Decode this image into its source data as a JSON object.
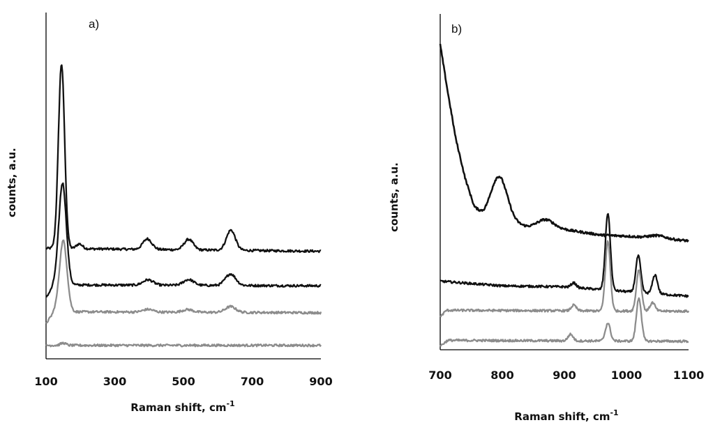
{
  "chart_data": [
    {
      "type": "line",
      "panel_label": "a)",
      "xlabel": "Raman shift, cm",
      "xlabel_sup": "-1",
      "ylabel": "counts, a.u.",
      "xlim": [
        100,
        900
      ],
      "xticks": [
        100,
        300,
        500,
        700,
        900
      ],
      "grid": false,
      "legend": "none",
      "series": [
        {
          "color": "#111111",
          "offset": 5.6,
          "sigma": 9,
          "peaks": [
            [
              145,
              9.6
            ],
            [
              197,
              0.25
            ],
            [
              395,
              0.55
            ],
            [
              515,
              0.55
            ],
            [
              638,
              1.05
            ]
          ],
          "baseline": [
            [
              100,
              0.15
            ],
            [
              900,
              0.0
            ]
          ]
        },
        {
          "color": "#111111",
          "offset": 3.8,
          "sigma": 11,
          "peaks": [
            [
              148,
              5.3
            ],
            [
              397,
              0.28
            ],
            [
              515,
              0.3
            ],
            [
              637,
              0.6
            ]
          ],
          "baseline": [
            [
              100,
              -0.6
            ],
            [
              125,
              0.05
            ],
            [
              900,
              0.0
            ]
          ]
        },
        {
          "color": "#8c8c8c",
          "offset": 2.4,
          "sigma": 11,
          "peaks": [
            [
              150,
              3.7
            ],
            [
              397,
              0.14
            ],
            [
              512,
              0.14
            ],
            [
              637,
              0.3
            ]
          ],
          "baseline": [
            [
              100,
              -0.55
            ],
            [
              125,
              0.05
            ],
            [
              900,
              0.0
            ]
          ]
        },
        {
          "color": "#8c8c8c",
          "offset": 0.7,
          "sigma": 8,
          "peaks": [
            [
              150,
              0.12
            ]
          ],
          "baseline": [
            [
              100,
              0.0
            ],
            [
              900,
              0.0
            ]
          ]
        }
      ]
    },
    {
      "type": "line",
      "panel_label": "b)",
      "xlabel": "Raman shift, cm",
      "xlabel_sup": "-1",
      "ylabel": "counts, a.u.",
      "xlim": [
        700,
        1100
      ],
      "xticks": [
        700,
        800,
        900,
        1000,
        1100
      ],
      "grid": false,
      "legend": "none",
      "series": [
        {
          "color": "#111111",
          "offset": 6.05,
          "sigma": 13,
          "peaks": [
            [
              795,
              2.3
            ],
            [
              870,
              0.45
            ],
            [
              1050,
              0.15
            ]
          ],
          "baseline": [
            [
              700,
              10.2
            ],
            [
              712,
              7.7
            ],
            [
              725,
              5.2
            ],
            [
              740,
              3.1
            ],
            [
              755,
              1.55
            ],
            [
              770,
              1.05
            ],
            [
              785,
              0.95
            ],
            [
              840,
              0.5
            ],
            [
              900,
              0.35
            ],
            [
              960,
              0.05
            ],
            [
              1000,
              0.0
            ],
            [
              1100,
              -0.25
            ]
          ]
        },
        {
          "color": "#111111",
          "offset": 3.35,
          "sigma": 4,
          "peaks": [
            [
              970,
              4.1
            ],
            [
              1019,
              1.95
            ],
            [
              1046,
              1.0
            ],
            [
              915,
              0.25
            ]
          ],
          "baseline": [
            [
              700,
              0.3
            ],
            [
              800,
              0.05
            ],
            [
              900,
              0.0
            ],
            [
              1100,
              -0.5
            ]
          ]
        },
        {
          "color": "#8c8c8c",
          "offset": 2.05,
          "sigma": 4,
          "peaks": [
            [
              970,
              3.7
            ],
            [
              1020,
              2.2
            ],
            [
              1042,
              0.45
            ],
            [
              915,
              0.3
            ]
          ],
          "baseline": [
            [
              700,
              -0.3
            ],
            [
              710,
              0.05
            ],
            [
              1100,
              0.0
            ]
          ]
        },
        {
          "color": "#8c8c8c",
          "offset": 0.45,
          "sigma": 4,
          "peaks": [
            [
              970,
              0.95
            ],
            [
              1020,
              2.3
            ],
            [
              910,
              0.35
            ]
          ],
          "baseline": [
            [
              700,
              -0.25
            ],
            [
              712,
              0.05
            ],
            [
              1100,
              0.0
            ]
          ]
        }
      ]
    }
  ]
}
